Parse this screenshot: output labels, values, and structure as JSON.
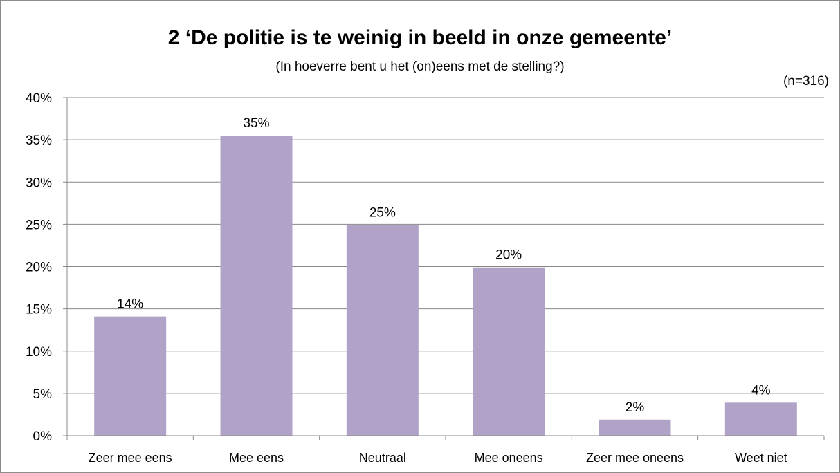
{
  "chart_data": {
    "type": "bar",
    "title": "2 ‘De politie is te weinig in beeld in onze gemeente’",
    "subtitle": "(In hoeverre bent u het (on)eens met de stelling?)",
    "note": "(n=316)",
    "categories": [
      "Zeer mee eens",
      "Mee eens",
      "Neutraal",
      "Mee oneens",
      "Zeer mee oneens",
      "Weet niet"
    ],
    "values": [
      14.1,
      35.5,
      24.9,
      19.9,
      1.9,
      3.9
    ],
    "value_labels": [
      "14%",
      "35%",
      "25%",
      "20%",
      "2%",
      "4%"
    ],
    "yticks": [
      "0%",
      "5%",
      "10%",
      "15%",
      "20%",
      "25%",
      "30%",
      "35%",
      "40%"
    ],
    "ylim": [
      0,
      40
    ],
    "ystep": 5,
    "grid": true,
    "legend": "none",
    "colors": {
      "bar": "#b1a3c8",
      "grid": "#888888",
      "axis": "#888888"
    }
  }
}
